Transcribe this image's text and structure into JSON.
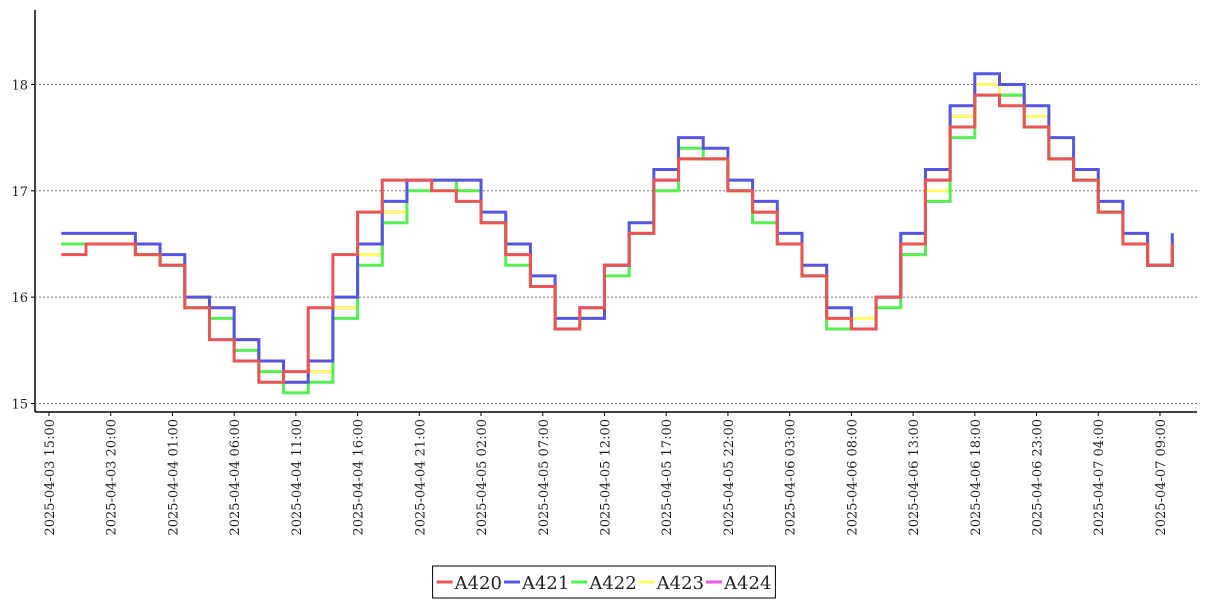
{
  "chart_data": {
    "type": "step-line",
    "x": [
      "2025-04-03 16:00",
      "2025-04-03 18:00",
      "2025-04-03 20:00",
      "2025-04-03 22:00",
      "2025-04-04 00:00",
      "2025-04-04 02:00",
      "2025-04-04 04:00",
      "2025-04-04 06:00",
      "2025-04-04 08:00",
      "2025-04-04 10:00",
      "2025-04-04 12:00",
      "2025-04-04 14:00",
      "2025-04-04 16:00",
      "2025-04-04 18:00",
      "2025-04-04 20:00",
      "2025-04-04 22:00",
      "2025-04-05 00:00",
      "2025-04-05 02:00",
      "2025-04-05 04:00",
      "2025-04-05 06:00",
      "2025-04-05 08:00",
      "2025-04-05 10:00",
      "2025-04-05 12:00",
      "2025-04-05 14:00",
      "2025-04-05 16:00",
      "2025-04-05 18:00",
      "2025-04-05 20:00",
      "2025-04-05 22:00",
      "2025-04-06 00:00",
      "2025-04-06 02:00",
      "2025-04-06 04:00",
      "2025-04-06 06:00",
      "2025-04-06 08:00",
      "2025-04-06 10:00",
      "2025-04-06 12:00",
      "2025-04-06 14:00",
      "2025-04-06 16:00",
      "2025-04-06 18:00",
      "2025-04-06 20:00",
      "2025-04-06 22:00",
      "2025-04-07 00:00",
      "2025-04-07 02:00",
      "2025-04-07 04:00",
      "2025-04-07 06:00",
      "2025-04-07 08:00",
      "2025-04-07 10:00"
    ],
    "series": [
      {
        "name": "A420",
        "color": "#e85555",
        "values": [
          16.4,
          16.5,
          16.5,
          16.4,
          16.3,
          15.9,
          15.6,
          15.4,
          15.2,
          15.3,
          15.9,
          16.4,
          16.8,
          17.1,
          17.1,
          17.0,
          16.9,
          16.7,
          16.4,
          16.1,
          15.7,
          15.9,
          16.3,
          16.6,
          17.1,
          17.3,
          17.3,
          17.0,
          16.8,
          16.5,
          16.2,
          15.8,
          15.7,
          16.0,
          16.5,
          17.1,
          17.6,
          17.9,
          17.8,
          17.6,
          17.3,
          17.1,
          16.8,
          16.5,
          16.3,
          16.5
        ]
      },
      {
        "name": "A421",
        "color": "#5555e0",
        "values": [
          16.6,
          16.6,
          16.6,
          16.5,
          16.4,
          16.0,
          15.9,
          15.6,
          15.4,
          15.2,
          15.4,
          16.0,
          16.5,
          16.9,
          17.1,
          17.1,
          17.1,
          16.8,
          16.5,
          16.2,
          15.8,
          15.8,
          16.3,
          16.7,
          17.2,
          17.5,
          17.4,
          17.1,
          16.9,
          16.6,
          16.3,
          15.9,
          15.7,
          16.0,
          16.6,
          17.2,
          17.8,
          18.1,
          18.0,
          17.8,
          17.5,
          17.2,
          16.9,
          16.6,
          16.3,
          16.6
        ]
      },
      {
        "name": "A422",
        "color": "#55ee55",
        "values": [
          16.5,
          16.5,
          16.5,
          16.4,
          16.3,
          15.9,
          15.8,
          15.5,
          15.3,
          15.1,
          15.2,
          15.8,
          16.3,
          16.7,
          17.0,
          17.1,
          17.0,
          16.7,
          16.3,
          16.1,
          15.7,
          15.8,
          16.2,
          16.6,
          17.0,
          17.4,
          17.3,
          17.0,
          16.7,
          16.5,
          16.2,
          15.7,
          15.7,
          15.9,
          16.4,
          16.9,
          17.5,
          17.9,
          17.9,
          17.6,
          17.3,
          17.1,
          16.8,
          16.5,
          16.3,
          16.5
        ]
      },
      {
        "name": "A423",
        "color": "#ffff66",
        "values": [
          16.5,
          16.5,
          16.5,
          16.4,
          16.3,
          16.0,
          15.9,
          15.6,
          15.4,
          15.2,
          15.3,
          15.9,
          16.4,
          16.8,
          17.1,
          17.1,
          17.0,
          16.7,
          16.4,
          16.1,
          15.7,
          15.8,
          16.2,
          16.6,
          17.0,
          17.3,
          17.3,
          17.0,
          16.8,
          16.5,
          16.3,
          15.8,
          15.8,
          16.0,
          16.4,
          17.0,
          17.7,
          18.0,
          17.9,
          17.7,
          17.3,
          17.1,
          16.8,
          16.5,
          16.3,
          16.5
        ]
      },
      {
        "name": "A424",
        "color": "#ee55ee",
        "values": [
          16.5,
          16.5,
          16.5,
          16.4,
          16.3,
          16.0,
          15.9,
          15.6,
          15.4,
          15.2,
          15.3,
          15.9,
          16.4,
          16.8,
          17.1,
          17.1,
          17.0,
          16.7,
          16.4,
          16.1,
          15.7,
          15.9,
          16.3,
          16.6,
          17.1,
          17.3,
          17.3,
          17.0,
          16.8,
          16.5,
          16.2,
          15.8,
          15.7,
          16.0,
          16.5,
          17.1,
          17.7,
          18.0,
          17.9,
          17.6,
          17.3,
          17.1,
          16.8,
          16.5,
          16.3,
          16.5
        ]
      }
    ],
    "xlim": [
      "2025-04-03 13:52",
      "2025-04-07 12:00"
    ],
    "xticks": [
      "2025-04-03 15:00",
      "2025-04-03 20:00",
      "2025-04-04 01:00",
      "2025-04-04 06:00",
      "2025-04-04 11:00",
      "2025-04-04 16:00",
      "2025-04-04 21:00",
      "2025-04-05 02:00",
      "2025-04-05 07:00",
      "2025-04-05 12:00",
      "2025-04-05 17:00",
      "2025-04-05 22:00",
      "2025-04-06 03:00",
      "2025-04-06 08:00",
      "2025-04-06 13:00",
      "2025-04-06 18:00",
      "2025-04-06 23:00",
      "2025-04-07 04:00",
      "2025-04-07 09:00"
    ],
    "ylim": [
      14.92,
      18.7
    ],
    "yticks": [
      15,
      16,
      17,
      18
    ],
    "grid": true,
    "legend": "bottom"
  }
}
